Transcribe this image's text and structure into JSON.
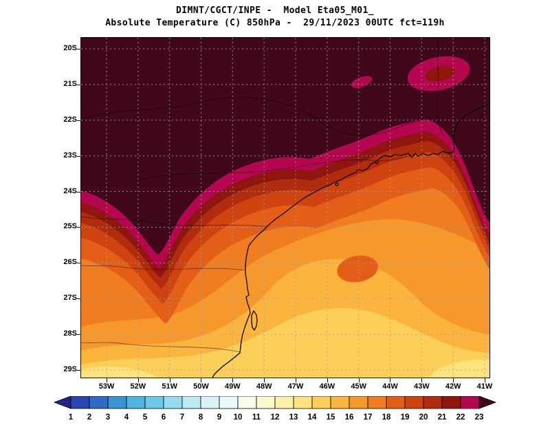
{
  "title": {
    "line1": "DIMNT/CGCT/INPE -  Model Eta05_M01_",
    "line2": "Absolute Temperature (C) 850hPa -  29/11/2023 00UTC fct=119h"
  },
  "map": {
    "lat_labels": [
      "20S",
      "21S",
      "22S",
      "23S",
      "24S",
      "25S",
      "26S",
      "27S",
      "28S",
      "29S"
    ],
    "lon_labels": [
      "53W",
      "52W",
      "51W",
      "50W",
      "49W",
      "48W",
      "47W",
      "46W",
      "45W",
      "44W",
      "43W",
      "42W",
      "41W"
    ]
  },
  "colorbar": {
    "tick_labels": [
      "1",
      "2",
      "3",
      "4",
      "5",
      "6",
      "7",
      "8",
      "9",
      "10",
      "11",
      "12",
      "13",
      "14",
      "15",
      "16",
      "17",
      "18",
      "19",
      "20",
      "21",
      "22",
      "23"
    ],
    "colors": [
      "#23238c",
      "#2a46b4",
      "#2f6ac6",
      "#3b92d2",
      "#4fb4de",
      "#6cc9e6",
      "#95dcee",
      "#bceaf4",
      "#d9f3f8",
      "#ecf9fb",
      "#f7fceb",
      "#fdf9cf",
      "#fdf0a8",
      "#fde37e",
      "#fccf58",
      "#fbb43e",
      "#f7982d",
      "#f07d20",
      "#e35f17",
      "#cf4310",
      "#b02c0d",
      "#8f160f",
      "#b5074f",
      "#40081a"
    ]
  },
  "chart_data": {
    "type": "heatmap",
    "title": "DIMNT/CGCT/INPE -  Model Eta05_M01_",
    "subtitle": "Absolute Temperature (C) 850hPa -  29/11/2023 00UTC fct=119h",
    "variable": "Absolute Temperature",
    "units": "C",
    "level": "850hPa",
    "valid_time": "29/11/2023 00UTC",
    "forecast": "fct=119h",
    "x_ticks": [
      "53W",
      "52W",
      "51W",
      "50W",
      "49W",
      "48W",
      "47W",
      "46W",
      "45W",
      "44W",
      "43W",
      "42W",
      "41W"
    ],
    "y_ticks": [
      "20S",
      "21S",
      "22S",
      "23S",
      "24S",
      "25S",
      "26S",
      "27S",
      "28S",
      "29S"
    ],
    "levels": [
      1,
      2,
      3,
      4,
      5,
      6,
      7,
      8,
      9,
      10,
      11,
      12,
      13,
      14,
      15,
      16,
      17,
      18,
      19,
      20,
      21,
      22,
      23
    ],
    "palette": [
      "#23238c",
      "#2a46b4",
      "#2f6ac6",
      "#3b92d2",
      "#4fb4de",
      "#6cc9e6",
      "#95dcee",
      "#bceaf4",
      "#d9f3f8",
      "#ecf9fb",
      "#f7fceb",
      "#fdf9cf",
      "#fdf0a8",
      "#fde37e",
      "#fccf58",
      "#fbb43e",
      "#f7982d",
      "#f07d20",
      "#e35f17",
      "#cf4310",
      "#b02c0d",
      "#8f160f",
      "#b5074f",
      "#40081a"
    ],
    "legend_position": "bottom",
    "grid": "dashed gray lat/lon grid every 1 degree",
    "field_description": [
      "Temperatures above 23 C (dark maroon) cover the northern part of the domain, roughly north of 23S-24S.",
      "A magenta 22-23 C band fringes the warm region, dipping southwest as a wedge toward 26S near 51W.",
      "A warm lobe above 23 C extends south along the eastern edge near 42W to about 25S.",
      "Orange values of 17-19 C dominate the central domain over Sao Paulo, Parana and the adjacent Atlantic.",
      "Values decrease to 14-16 C (yellow-orange) in the south-central area and to 13-14 C (pale yellow) near the southern corners around 29S."
    ]
  }
}
